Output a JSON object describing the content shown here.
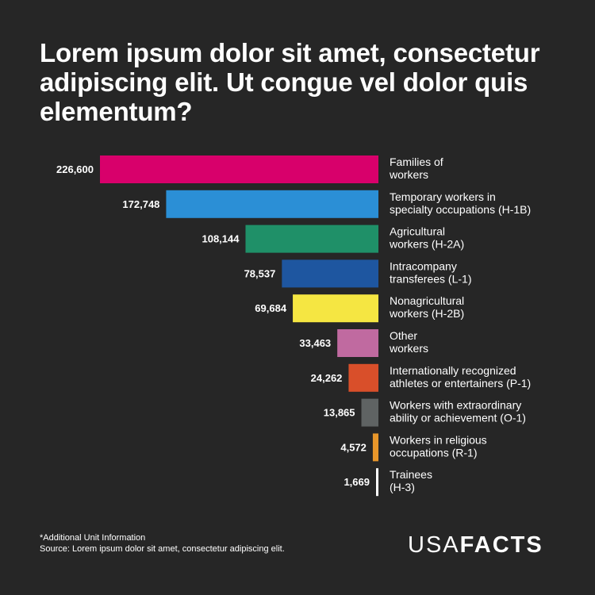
{
  "title": "Lorem ipsum dolor sit amet, consectetur adipiscing elit. Ut congue vel dolor quis elementum?",
  "footnote": "*Additional Unit Information",
  "source": "Source: Lorem ipsum dolor sit amet, consectetur adipiscing elit.",
  "logo": {
    "part1": "USA",
    "part2": "FACTS"
  },
  "chart_data": {
    "type": "bar",
    "orientation": "horizontal",
    "title": "Lorem ipsum dolor sit amet, consectetur adipiscing elit. Ut congue vel dolor quis elementum?",
    "xlabel": "",
    "ylabel": "",
    "xlim": [
      0,
      226600
    ],
    "grid": false,
    "legend": "none",
    "categories": [
      [
        "Families of",
        "workers"
      ],
      [
        "Temporary workers in",
        "specialty occupations (H-1B)"
      ],
      [
        "Agricultural",
        "workers (H-2A)"
      ],
      [
        "Intracompany",
        "transferees (L-1)"
      ],
      [
        "Nonagricultural",
        "workers (H-2B)"
      ],
      [
        "Other",
        "workers"
      ],
      [
        "Internationally recognized",
        "athletes or entertainers (P-1)"
      ],
      [
        "Workers with extraordinary",
        "ability or achievement (O-1)"
      ],
      [
        "Workers in religious",
        "occupations (R-1)"
      ],
      [
        "Trainees",
        "(H-3)"
      ]
    ],
    "values": [
      226600,
      172748,
      108144,
      78537,
      69684,
      33463,
      24262,
      13865,
      4572,
      1669
    ],
    "value_labels": [
      "226,600",
      "172,748",
      "108,144",
      "78,537",
      "69,684",
      "33,463",
      "24,262",
      "13,865",
      "4,572",
      "1,669"
    ],
    "colors": [
      "#d8006b",
      "#2b8fd6",
      "#1f9068",
      "#1e56a0",
      "#f5e642",
      "#c06aa0",
      "#d94f2a",
      "#5f6363",
      "#e8962a",
      "#ffffff"
    ]
  }
}
